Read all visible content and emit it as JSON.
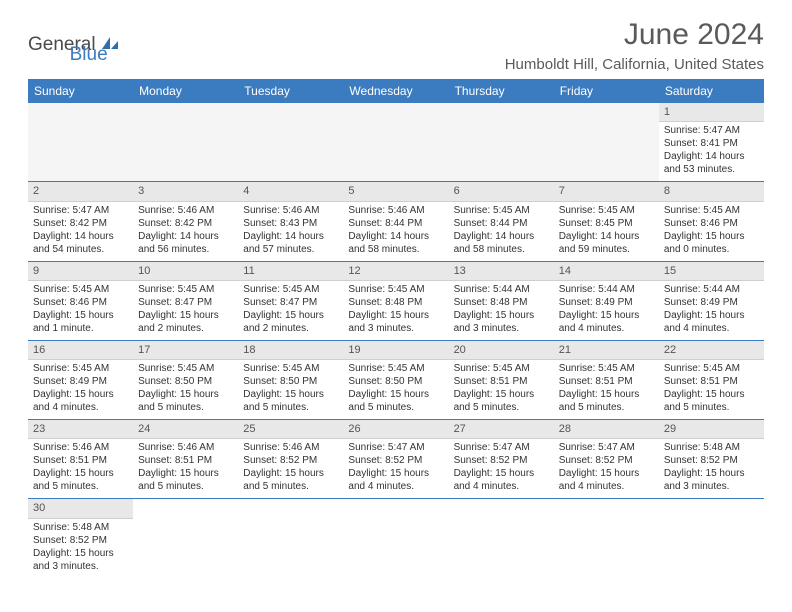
{
  "brand": {
    "general": "General",
    "blue": "Blue"
  },
  "header": {
    "month_title": "June 2024",
    "location": "Humboldt Hill, California, United States"
  },
  "colors": {
    "header_bg": "#3b7bbf",
    "header_text": "#ffffff",
    "daynum_bg": "#e8e8e8",
    "row_divider": "#3b7bbf",
    "text": "#333333"
  },
  "calendar": {
    "day_headers": [
      "Sunday",
      "Monday",
      "Tuesday",
      "Wednesday",
      "Thursday",
      "Friday",
      "Saturday"
    ],
    "weeks": [
      [
        null,
        null,
        null,
        null,
        null,
        null,
        {
          "n": "1",
          "sunrise": "Sunrise: 5:47 AM",
          "sunset": "Sunset: 8:41 PM",
          "daylight": "Daylight: 14 hours and 53 minutes."
        }
      ],
      [
        {
          "n": "2",
          "sunrise": "Sunrise: 5:47 AM",
          "sunset": "Sunset: 8:42 PM",
          "daylight": "Daylight: 14 hours and 54 minutes."
        },
        {
          "n": "3",
          "sunrise": "Sunrise: 5:46 AM",
          "sunset": "Sunset: 8:42 PM",
          "daylight": "Daylight: 14 hours and 56 minutes."
        },
        {
          "n": "4",
          "sunrise": "Sunrise: 5:46 AM",
          "sunset": "Sunset: 8:43 PM",
          "daylight": "Daylight: 14 hours and 57 minutes."
        },
        {
          "n": "5",
          "sunrise": "Sunrise: 5:46 AM",
          "sunset": "Sunset: 8:44 PM",
          "daylight": "Daylight: 14 hours and 58 minutes."
        },
        {
          "n": "6",
          "sunrise": "Sunrise: 5:45 AM",
          "sunset": "Sunset: 8:44 PM",
          "daylight": "Daylight: 14 hours and 58 minutes."
        },
        {
          "n": "7",
          "sunrise": "Sunrise: 5:45 AM",
          "sunset": "Sunset: 8:45 PM",
          "daylight": "Daylight: 14 hours and 59 minutes."
        },
        {
          "n": "8",
          "sunrise": "Sunrise: 5:45 AM",
          "sunset": "Sunset: 8:46 PM",
          "daylight": "Daylight: 15 hours and 0 minutes."
        }
      ],
      [
        {
          "n": "9",
          "sunrise": "Sunrise: 5:45 AM",
          "sunset": "Sunset: 8:46 PM",
          "daylight": "Daylight: 15 hours and 1 minute."
        },
        {
          "n": "10",
          "sunrise": "Sunrise: 5:45 AM",
          "sunset": "Sunset: 8:47 PM",
          "daylight": "Daylight: 15 hours and 2 minutes."
        },
        {
          "n": "11",
          "sunrise": "Sunrise: 5:45 AM",
          "sunset": "Sunset: 8:47 PM",
          "daylight": "Daylight: 15 hours and 2 minutes."
        },
        {
          "n": "12",
          "sunrise": "Sunrise: 5:45 AM",
          "sunset": "Sunset: 8:48 PM",
          "daylight": "Daylight: 15 hours and 3 minutes."
        },
        {
          "n": "13",
          "sunrise": "Sunrise: 5:44 AM",
          "sunset": "Sunset: 8:48 PM",
          "daylight": "Daylight: 15 hours and 3 minutes."
        },
        {
          "n": "14",
          "sunrise": "Sunrise: 5:44 AM",
          "sunset": "Sunset: 8:49 PM",
          "daylight": "Daylight: 15 hours and 4 minutes."
        },
        {
          "n": "15",
          "sunrise": "Sunrise: 5:44 AM",
          "sunset": "Sunset: 8:49 PM",
          "daylight": "Daylight: 15 hours and 4 minutes."
        }
      ],
      [
        {
          "n": "16",
          "sunrise": "Sunrise: 5:45 AM",
          "sunset": "Sunset: 8:49 PM",
          "daylight": "Daylight: 15 hours and 4 minutes."
        },
        {
          "n": "17",
          "sunrise": "Sunrise: 5:45 AM",
          "sunset": "Sunset: 8:50 PM",
          "daylight": "Daylight: 15 hours and 5 minutes."
        },
        {
          "n": "18",
          "sunrise": "Sunrise: 5:45 AM",
          "sunset": "Sunset: 8:50 PM",
          "daylight": "Daylight: 15 hours and 5 minutes."
        },
        {
          "n": "19",
          "sunrise": "Sunrise: 5:45 AM",
          "sunset": "Sunset: 8:50 PM",
          "daylight": "Daylight: 15 hours and 5 minutes."
        },
        {
          "n": "20",
          "sunrise": "Sunrise: 5:45 AM",
          "sunset": "Sunset: 8:51 PM",
          "daylight": "Daylight: 15 hours and 5 minutes."
        },
        {
          "n": "21",
          "sunrise": "Sunrise: 5:45 AM",
          "sunset": "Sunset: 8:51 PM",
          "daylight": "Daylight: 15 hours and 5 minutes."
        },
        {
          "n": "22",
          "sunrise": "Sunrise: 5:45 AM",
          "sunset": "Sunset: 8:51 PM",
          "daylight": "Daylight: 15 hours and 5 minutes."
        }
      ],
      [
        {
          "n": "23",
          "sunrise": "Sunrise: 5:46 AM",
          "sunset": "Sunset: 8:51 PM",
          "daylight": "Daylight: 15 hours and 5 minutes."
        },
        {
          "n": "24",
          "sunrise": "Sunrise: 5:46 AM",
          "sunset": "Sunset: 8:51 PM",
          "daylight": "Daylight: 15 hours and 5 minutes."
        },
        {
          "n": "25",
          "sunrise": "Sunrise: 5:46 AM",
          "sunset": "Sunset: 8:52 PM",
          "daylight": "Daylight: 15 hours and 5 minutes."
        },
        {
          "n": "26",
          "sunrise": "Sunrise: 5:47 AM",
          "sunset": "Sunset: 8:52 PM",
          "daylight": "Daylight: 15 hours and 4 minutes."
        },
        {
          "n": "27",
          "sunrise": "Sunrise: 5:47 AM",
          "sunset": "Sunset: 8:52 PM",
          "daylight": "Daylight: 15 hours and 4 minutes."
        },
        {
          "n": "28",
          "sunrise": "Sunrise: 5:47 AM",
          "sunset": "Sunset: 8:52 PM",
          "daylight": "Daylight: 15 hours and 4 minutes."
        },
        {
          "n": "29",
          "sunrise": "Sunrise: 5:48 AM",
          "sunset": "Sunset: 8:52 PM",
          "daylight": "Daylight: 15 hours and 3 minutes."
        }
      ],
      [
        {
          "n": "30",
          "sunrise": "Sunrise: 5:48 AM",
          "sunset": "Sunset: 8:52 PM",
          "daylight": "Daylight: 15 hours and 3 minutes."
        },
        null,
        null,
        null,
        null,
        null,
        null
      ]
    ]
  }
}
